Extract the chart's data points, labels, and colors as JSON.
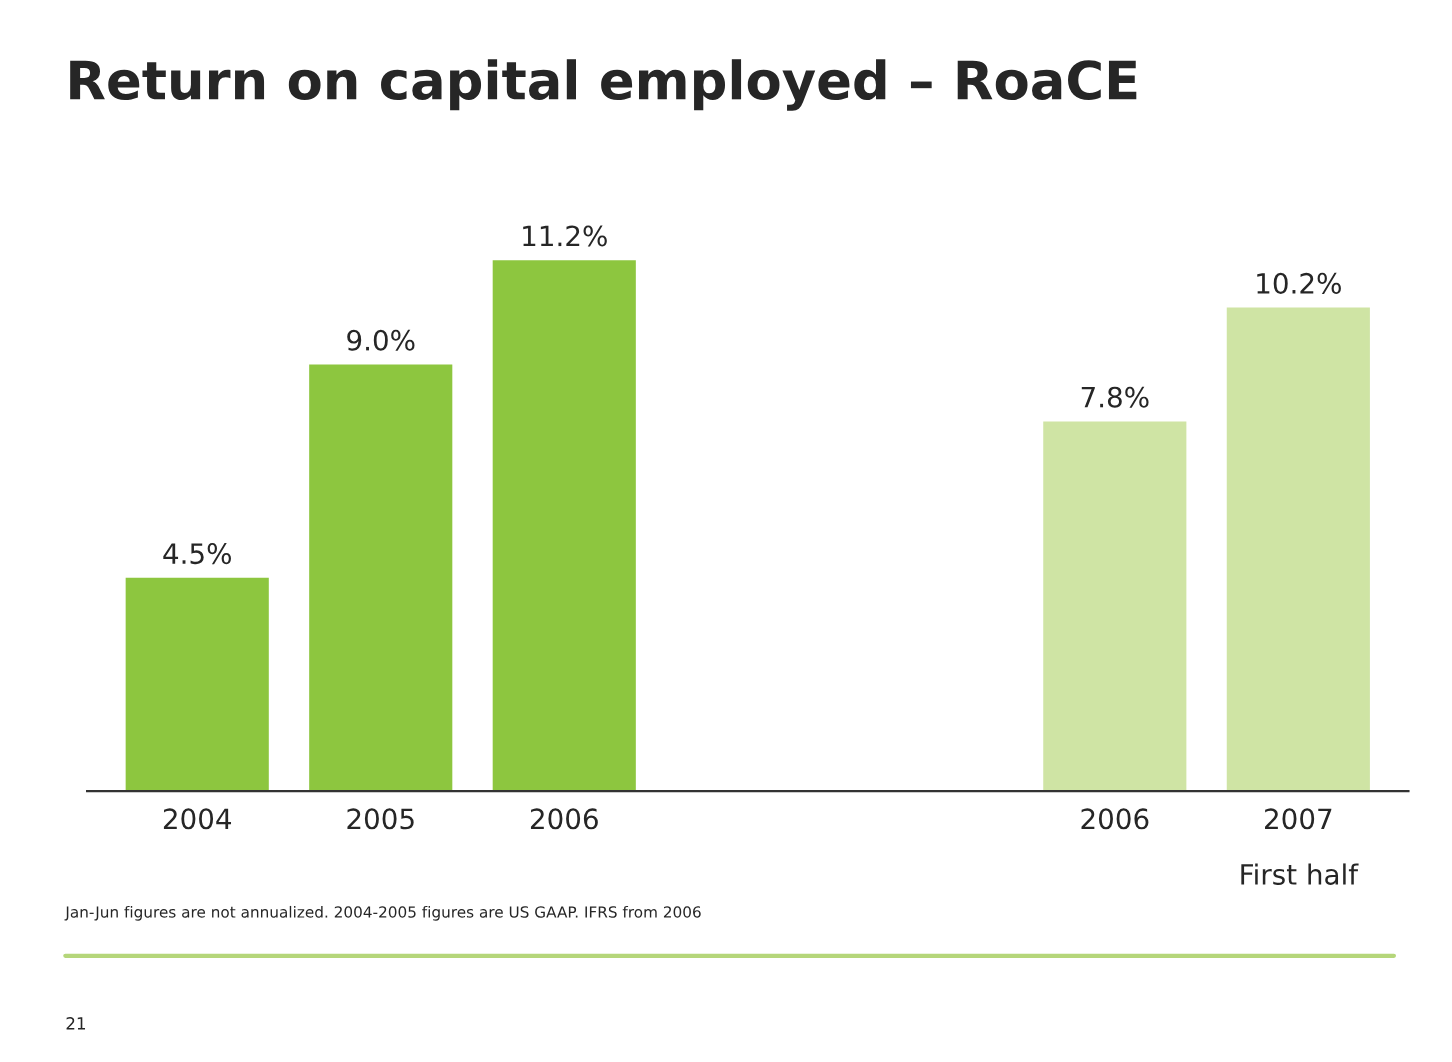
{
  "chart_data": {
    "type": "bar",
    "title": "Return on capital employed – RoaCE",
    "categories": [
      "2004",
      "2005",
      "2006",
      null,
      null,
      "2006",
      "2007"
    ],
    "values": [
      4.5,
      9.0,
      11.2,
      null,
      null,
      7.8,
      10.2
    ],
    "colors": [
      "#8dc63f",
      "#8dc63f",
      "#8dc63f",
      "#8dc63f",
      "#8dc63f",
      "#cfe4a4",
      "#cfe4a4"
    ],
    "value_labels": [
      "4.5%",
      "9.0%",
      "11.2%",
      null,
      null,
      "7.8%",
      "10.2%"
    ],
    "annotations": [
      "First half",
      "Jan-Jun figures are not annualized. 2004-2005 figures are US GAAP. IFRS from 2006",
      "21"
    ],
    "grid": false,
    "legend": false
  }
}
